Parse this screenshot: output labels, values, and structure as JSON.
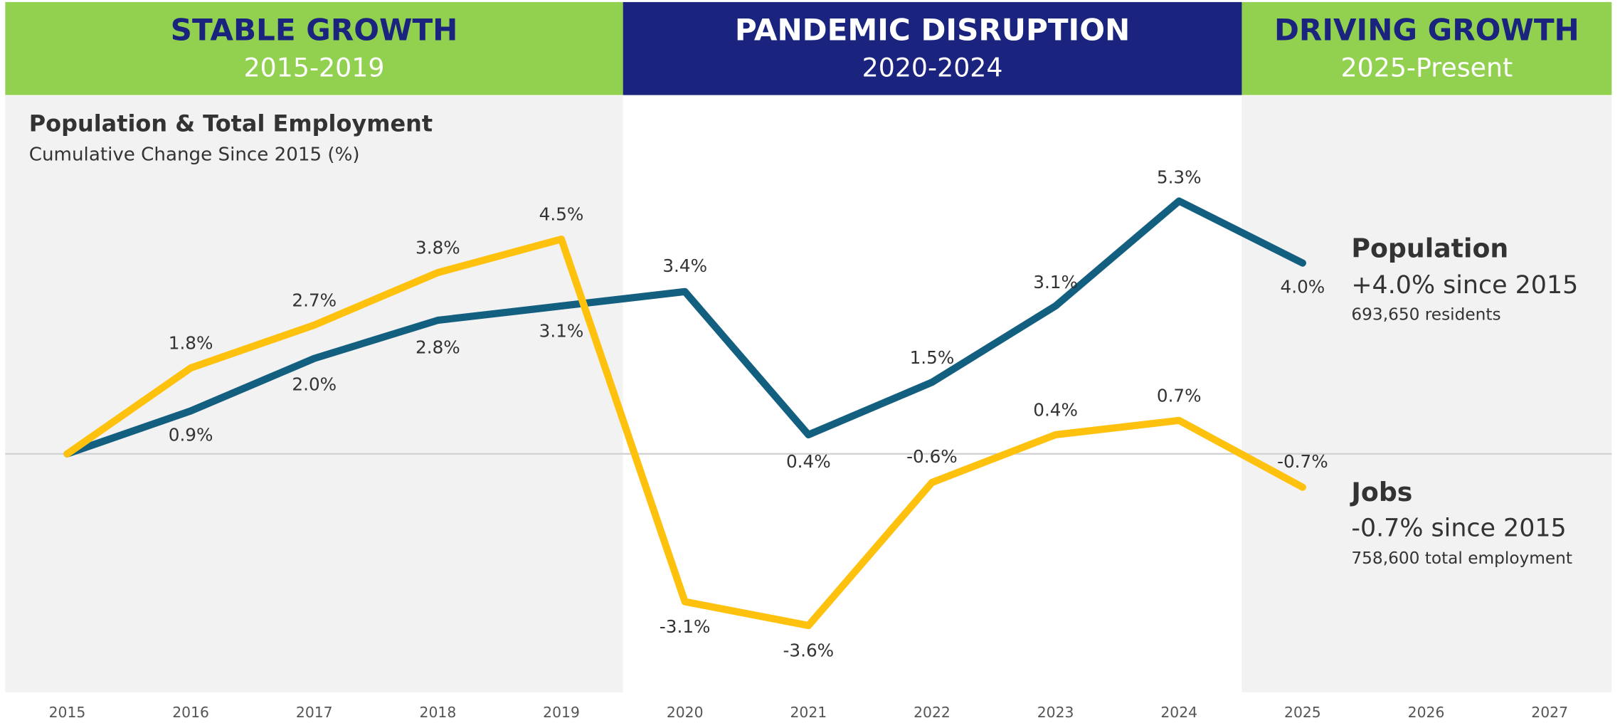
{
  "chart_data": {
    "type": "line",
    "title": "Population & Total Employment",
    "subtitle": "Cumulative Change Since 2015 (%)",
    "sections": [
      {
        "title": "STABLE GROWTH",
        "subtitle": "2015-2019",
        "color": "#92d050"
      },
      {
        "title": "PANDEMIC DISRUPTION",
        "subtitle": "2020-2024",
        "color": "#1a237e"
      },
      {
        "title": "DRIVING GROWTH",
        "subtitle": "2025-Present",
        "color": "#92d050"
      }
    ],
    "categories": [
      "2015",
      "2016",
      "2017",
      "2018",
      "2019",
      "2020",
      "2021",
      "2022",
      "2023",
      "2024",
      "2025",
      "2026",
      "2027"
    ],
    "series": [
      {
        "name": "Population",
        "color": "#135f80",
        "values": [
          0,
          0.9,
          2.0,
          2.8,
          3.1,
          3.4,
          0.4,
          1.5,
          3.1,
          5.3,
          4.0,
          null,
          null
        ],
        "value_labels": [
          null,
          "0.9%",
          "2.0%",
          "2.8%",
          "3.1%",
          "3.4%",
          "0.4%",
          "1.5%",
          "3.1%",
          "5.3%",
          "4.0%",
          null,
          null
        ],
        "summary": "+4.0% since 2015",
        "detail": "693,650 residents"
      },
      {
        "name": "Jobs",
        "color": "#fec20e",
        "values": [
          0,
          1.8,
          2.7,
          3.8,
          4.5,
          -3.1,
          -3.6,
          -0.6,
          0.4,
          0.7,
          -0.7,
          null,
          null
        ],
        "value_labels": [
          null,
          "1.8%",
          "2.7%",
          "3.8%",
          "4.5%",
          "-3.1%",
          "-3.6%",
          "-0.6%",
          "0.4%",
          "0.7%",
          "-0.7%",
          null,
          null
        ],
        "summary": "-0.7% since 2015",
        "detail": "758,600 total employment"
      }
    ],
    "ylim": [
      -5,
      7.5
    ],
    "reference_line": 0
  }
}
